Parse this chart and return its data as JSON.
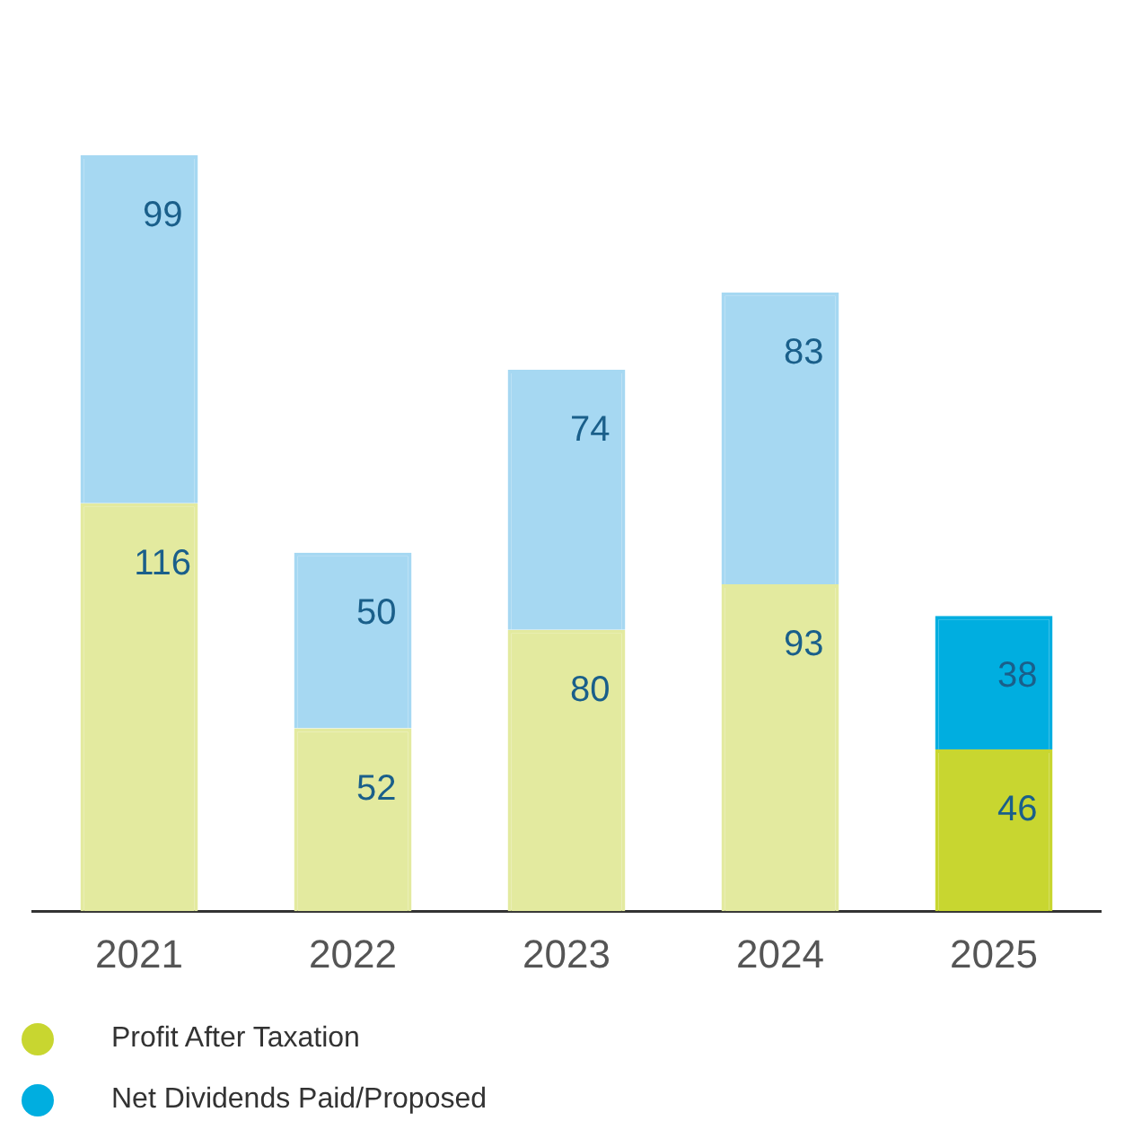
{
  "chart_data": {
    "type": "bar",
    "stacked": true,
    "categories": [
      "2021",
      "2022",
      "2023",
      "2024",
      "2025"
    ],
    "series": [
      {
        "name": "Profit After Taxation",
        "color": "#c8d630",
        "colors": [
          "#e3ea9f",
          "#e3ea9f",
          "#e3ea9f",
          "#e3ea9f",
          "#c8d630"
        ],
        "values": [
          116,
          52,
          80,
          93,
          46
        ]
      },
      {
        "name": "Net Dividends Paid/Proposed",
        "color": "#00aee0",
        "colors": [
          "#a6d8f2",
          "#a6d8f2",
          "#a6d8f2",
          "#a6d8f2",
          "#00aee0"
        ],
        "values": [
          99,
          50,
          74,
          83,
          38
        ]
      }
    ],
    "tick_labels": "x",
    "grid": false,
    "legend": "bottom",
    "data_labels": true
  }
}
